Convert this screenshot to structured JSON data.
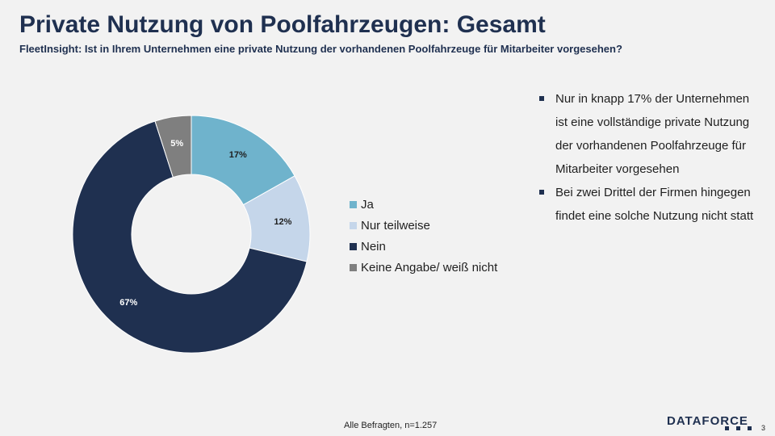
{
  "header": {
    "title": "Private Nutzung von Poolfahrzeugen: Gesamt",
    "subtitle": "FleetInsight: Ist in Ihrem Unternehmen eine private Nutzung der vorhandenen Poolfahrzeuge für Mitarbeiter vorgesehen?"
  },
  "chart_data": {
    "type": "pie",
    "donut": true,
    "categories": [
      "Ja",
      "Nur teilweise",
      "Nein",
      "Keine Angabe/ weiß nicht"
    ],
    "values": [
      17,
      12,
      67,
      5
    ],
    "labels": [
      "17%",
      "12%",
      "67%",
      "5%"
    ],
    "colors": [
      "#6fb3cc",
      "#c5d6ea",
      "#1f3050",
      "#7f7f7f"
    ],
    "label_colors": [
      "#1f1f1f",
      "#1f1f1f",
      "#ffffff",
      "#ffffff"
    ],
    "legend_position": "right"
  },
  "bullets": [
    "Nur in knapp 17% der Unternehmen  ist eine vollständige private Nutzung  der vorhandenen Poolfahrzeuge für Mitarbeiter vorgesehen",
    "Bei zwei Drittel der Firmen hingegen findet eine solche Nutzung  nicht statt"
  ],
  "footer": {
    "note": "Alle Befragten, n=1.257",
    "logo": "DATAFORCE",
    "page_number": "3"
  }
}
